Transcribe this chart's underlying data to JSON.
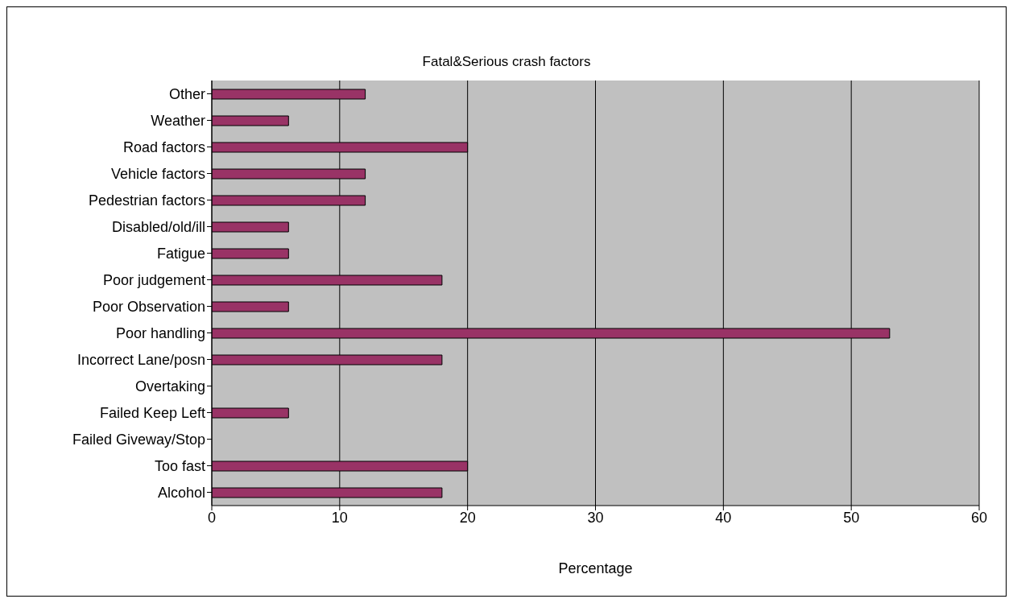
{
  "chart_data": {
    "type": "bar",
    "orientation": "horizontal",
    "title": "Fatal&Serious crash factors",
    "xlabel": "Percentage",
    "categories": [
      "Other",
      "Weather",
      "Road factors",
      "Vehicle factors",
      "Pedestrian factors",
      "Disabled/old/ill",
      "Fatigue",
      "Poor judgement",
      "Poor Observation",
      "Poor handling",
      "Incorrect Lane/posn",
      "Overtaking",
      "Failed Keep Left",
      "Failed Giveway/Stop",
      "Too fast",
      "Alcohol"
    ],
    "values": [
      12,
      6,
      20,
      12,
      12,
      6,
      6,
      18,
      6,
      53,
      18,
      0,
      6,
      0,
      20,
      18
    ],
    "color": "#993366",
    "xlim": [
      0,
      60
    ],
    "xticks": [
      0,
      10,
      20,
      30,
      40,
      50,
      60
    ],
    "grid": "x"
  }
}
